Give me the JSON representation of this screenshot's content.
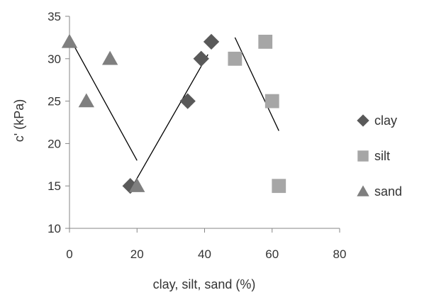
{
  "chart_data": {
    "type": "scatter",
    "title": "",
    "xlabel": "clay, silt, sand (%)",
    "ylabel": "c' (kPa)",
    "xlim": [
      0,
      80
    ],
    "ylim": [
      10,
      35
    ],
    "xticks": [
      0,
      20,
      40,
      60,
      80
    ],
    "yticks": [
      10,
      15,
      20,
      25,
      30,
      35
    ],
    "grid": false,
    "legend_position": "right",
    "series": [
      {
        "name": "clay",
        "marker": "diamond",
        "color": "#595959",
        "points": [
          [
            18,
            15
          ],
          [
            35,
            25
          ],
          [
            39,
            30
          ],
          [
            42,
            32
          ]
        ]
      },
      {
        "name": "silt",
        "marker": "square",
        "color": "#a6a6a6",
        "points": [
          [
            49,
            30
          ],
          [
            58,
            32
          ],
          [
            60,
            25
          ],
          [
            62,
            15
          ]
        ]
      },
      {
        "name": "sand",
        "marker": "triangle",
        "color": "#7f7f7f",
        "points": [
          [
            0,
            32
          ],
          [
            5,
            25
          ],
          [
            12,
            30
          ],
          [
            20,
            15
          ]
        ]
      }
    ],
    "trendlines": [
      {
        "x": [
          0,
          20
        ],
        "y": [
          32.5,
          18
        ]
      },
      {
        "x": [
          18,
          41
        ],
        "y": [
          14.5,
          30.5
        ]
      },
      {
        "x": [
          49,
          62
        ],
        "y": [
          32.5,
          21.5
        ]
      }
    ]
  }
}
